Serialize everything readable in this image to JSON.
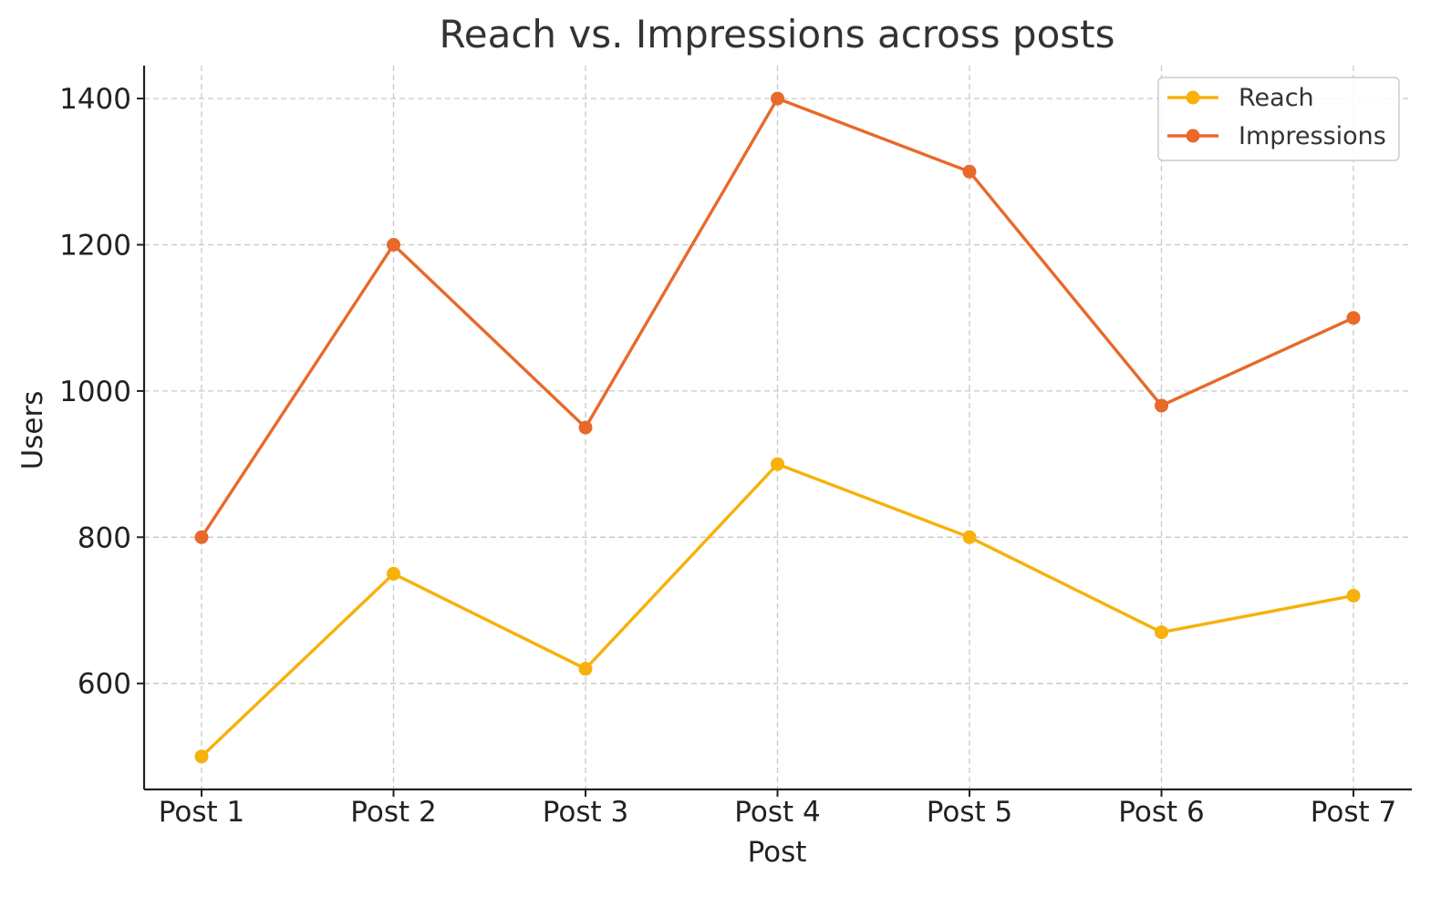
{
  "chart_data": {
    "type": "line",
    "title": "Reach vs. Impressions across posts",
    "xlabel": "Post",
    "ylabel": "Users",
    "categories": [
      "Post 1",
      "Post 2",
      "Post 3",
      "Post 4",
      "Post 5",
      "Post 6",
      "Post 7"
    ],
    "yticks": [
      600,
      800,
      1000,
      1200,
      1400
    ],
    "ylim": [
      455,
      1445
    ],
    "grid": true,
    "legend_position": "top-right",
    "series": [
      {
        "name": "Reach",
        "color": "#F7B10A",
        "values": [
          500,
          750,
          620,
          900,
          800,
          670,
          720
        ]
      },
      {
        "name": "Impressions",
        "color": "#E8692A",
        "values": [
          800,
          1200,
          950,
          1400,
          1300,
          980,
          1100
        ]
      }
    ]
  }
}
